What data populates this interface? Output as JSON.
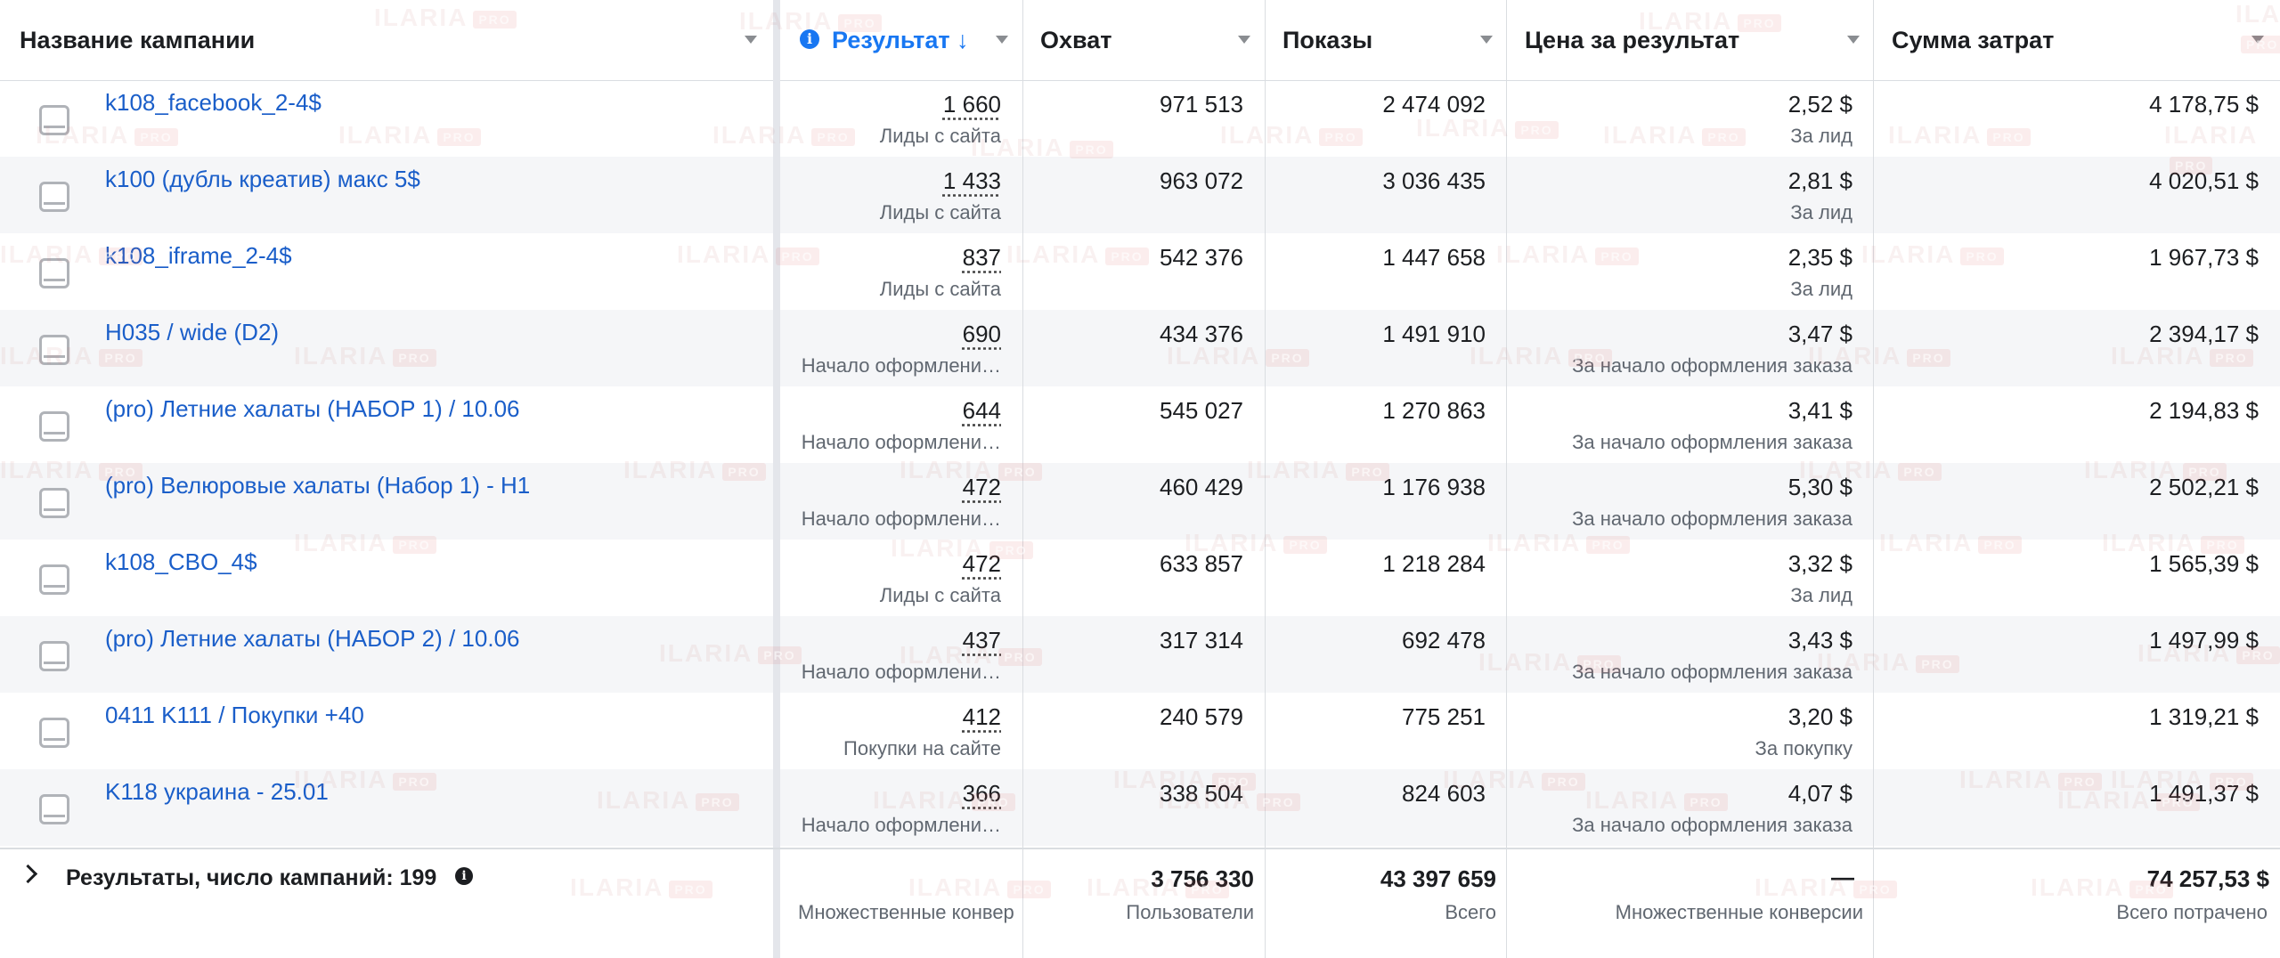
{
  "header": {
    "col_name": "Название кампании",
    "col_result": "Результат",
    "col_result_arrow": "↓",
    "col_reach": "Охват",
    "col_impressions": "Показы",
    "col_cost_per_result": "Цена за результат",
    "col_spend": "Сумма затрат"
  },
  "rows": [
    {
      "name": "k108_facebook_2-4$",
      "result": "1 660",
      "result_type": "Лиды с сайта",
      "reach": "971 513",
      "impressions": "2 474 092",
      "cpr": "2,52 $",
      "cpr_type": "За лид",
      "spend": "4 178,75 $"
    },
    {
      "name": "k100 (дубль креатив) макс 5$",
      "result": "1 433",
      "result_type": "Лиды с сайта",
      "reach": "963 072",
      "impressions": "3 036 435",
      "cpr": "2,81 $",
      "cpr_type": "За лид",
      "spend": "4 020,51 $"
    },
    {
      "name": "k108_iframe_2-4$",
      "result": "837",
      "result_type": "Лиды с сайта",
      "reach": "542 376",
      "impressions": "1 447 658",
      "cpr": "2,35 $",
      "cpr_type": "За лид",
      "spend": "1 967,73 $"
    },
    {
      "name": "H035 / wide (D2)",
      "result": "690",
      "result_type": "Начало оформлени…",
      "reach": "434 376",
      "impressions": "1 491 910",
      "cpr": "3,47 $",
      "cpr_type": "За начало оформления заказа",
      "spend": "2 394,17 $"
    },
    {
      "name": "(pro) Летние халаты (НАБОР 1) / 10.06",
      "result": "644",
      "result_type": "Начало оформлени…",
      "reach": "545 027",
      "impressions": "1 270 863",
      "cpr": "3,41 $",
      "cpr_type": "За начало оформления заказа",
      "spend": "2 194,83 $"
    },
    {
      "name": "(pro) Велюровые халаты (Набор 1) - H1",
      "result": "472",
      "result_type": "Начало оформлени…",
      "reach": "460 429",
      "impressions": "1 176 938",
      "cpr": "5,30 $",
      "cpr_type": "За начало оформления заказа",
      "spend": "2 502,21 $"
    },
    {
      "name": "k108_CBO_4$",
      "result": "472",
      "result_type": "Лиды с сайта",
      "reach": "633 857",
      "impressions": "1 218 284",
      "cpr": "3,32 $",
      "cpr_type": "За лид",
      "spend": "1 565,39 $"
    },
    {
      "name": "(pro) Летние халаты (НАБОР 2) / 10.06",
      "result": "437",
      "result_type": "Начало оформлени…",
      "reach": "317 314",
      "impressions": "692 478",
      "cpr": "3,43 $",
      "cpr_type": "За начало оформления заказа",
      "spend": "1 497,99 $"
    },
    {
      "name": "0411 K111 / Покупки +40",
      "result": "412",
      "result_type": "Покупки на сайте",
      "reach": "240 579",
      "impressions": "775 251",
      "cpr": "3,20 $",
      "cpr_type": "За покупку",
      "spend": "1 319,21 $"
    },
    {
      "name": "K118 украина - 25.01",
      "result": "366",
      "result_type": "Начало оформлени…",
      "reach": "338 504",
      "impressions": "824 603",
      "cpr": "4,07 $",
      "cpr_type": "За начало оформления заказа",
      "spend": "1 491,37 $"
    }
  ],
  "footer": {
    "label": "Результаты, число кампаний: 199",
    "result_sub": "Множественные конвер",
    "reach": "3 756 330",
    "reach_sub": "Пользователи",
    "impressions": "43 397 659",
    "impressions_sub": "Всего",
    "cpr": "—",
    "cpr_sub": "Множественные конверсии",
    "spend": "74 257,53 $",
    "spend_sub": "Всего потрачено"
  },
  "watermark": {
    "text": "ILARIA",
    "badge": "PRO"
  },
  "icons": {
    "info": "info-icon",
    "row_checkbox": "checkbox-icon",
    "expand": "chevron-right-icon",
    "sort": "caret-down-icon"
  },
  "colors": {
    "link": "#1a5ec9",
    "accent": "#1877f2",
    "alt_row": "#f5f6f8"
  }
}
